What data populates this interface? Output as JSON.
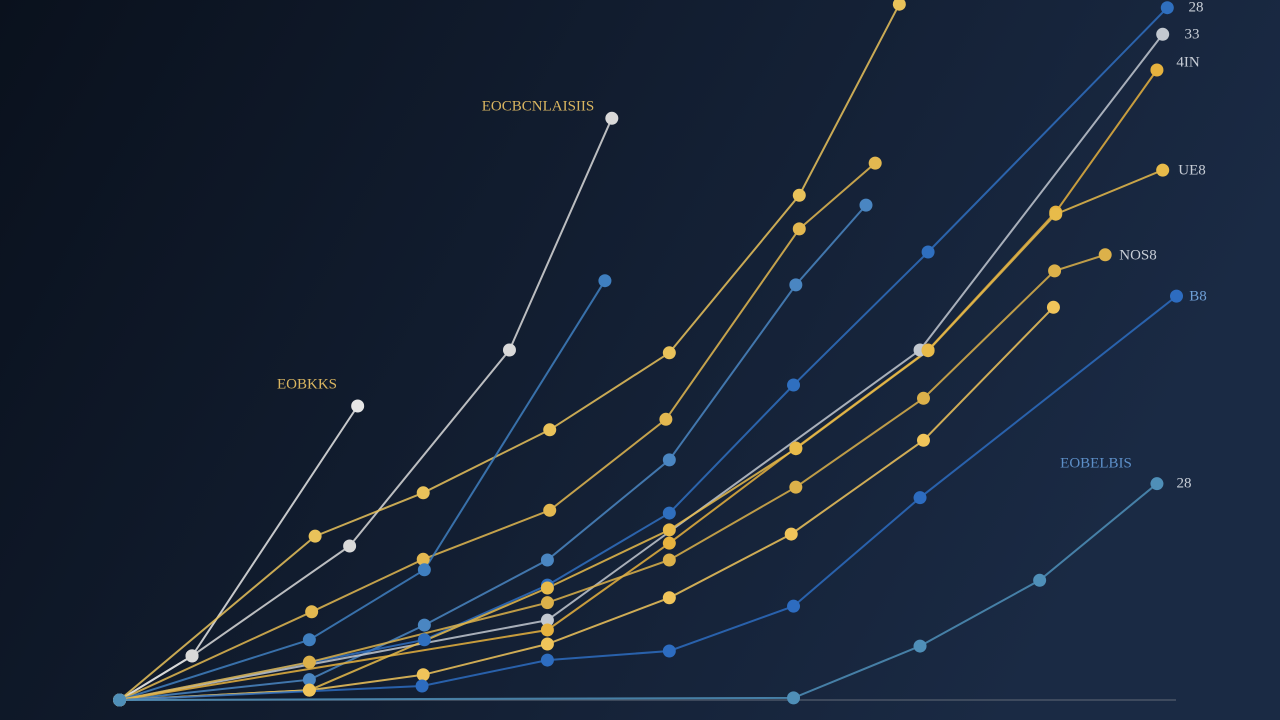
{
  "chart_data": {
    "type": "line",
    "xlim": [
      -1.04,
      10.09
    ],
    "ylim": [
      -2.86,
      100
    ],
    "series": [
      {
        "color": "#e6e6e6",
        "x": [
          0,
          0.63,
          2.07
        ],
        "values": [
          0,
          6.3,
          42
        ]
      },
      {
        "color": "#d9d9d9",
        "x": [
          0,
          0.63,
          2.0,
          3.39,
          4.28
        ],
        "values": [
          0,
          6.3,
          22,
          50,
          83.1
        ]
      },
      {
        "color": "#e9c25a",
        "x": [
          0,
          1.7,
          2.64,
          3.74,
          4.78,
          5.91,
          6.78
        ],
        "values": [
          0,
          23.4,
          29.6,
          38.6,
          49.6,
          72.1,
          99.4
        ]
      },
      {
        "color": "#e3b850",
        "x": [
          0,
          1.67,
          2.64,
          3.74,
          4.75,
          5.91,
          6.57
        ],
        "values": [
          0,
          12.6,
          20.1,
          27.1,
          40.1,
          67.3,
          76.7
        ]
      },
      {
        "color": "#3f7fc0",
        "x": [
          0,
          1.65,
          2.65,
          4.22
        ],
        "values": [
          0,
          8.6,
          18.6,
          59.9
        ]
      },
      {
        "color": "#4a86c2",
        "x": [
          0,
          1.65,
          2.65,
          3.72,
          4.78,
          5.88,
          6.49
        ],
        "values": [
          0,
          2.9,
          10.7,
          20,
          34.3,
          59.3,
          70.7
        ]
      },
      {
        "color": "#2f6fbf",
        "x": [
          0,
          2.65,
          3.72,
          4.78,
          5.86,
          7.03,
          9.11
        ],
        "values": [
          0,
          8.6,
          16.4,
          26.7,
          45,
          64,
          98.9
        ]
      },
      {
        "color": "#c2c8d0",
        "x": [
          0,
          3.72,
          6.96,
          9.07
        ],
        "values": [
          0,
          11.4,
          50,
          95.1
        ]
      },
      {
        "color": "#e6b23e",
        "x": [
          0,
          3.72,
          4.78,
          5.88,
          7.03,
          8.14,
          9.02
        ],
        "values": [
          0,
          10,
          22.4,
          36,
          50,
          69.7,
          90
        ]
      },
      {
        "color": "#e8bb4a",
        "x": [
          0,
          1.65,
          3.72,
          4.78,
          5.88,
          7.03,
          8.14,
          9.07
        ],
        "values": [
          0,
          1.4,
          16,
          24.3,
          35.9,
          49.9,
          69.4,
          75.7
        ]
      },
      {
        "color": "#dcb14a",
        "x": [
          0,
          1.65,
          3.72,
          4.78,
          5.88,
          6.99,
          8.13,
          8.57
        ],
        "values": [
          0,
          5.4,
          13.9,
          20,
          30.4,
          43.1,
          61.3,
          63.6
        ]
      },
      {
        "color": "#f0c45a",
        "x": [
          0,
          1.65,
          2.64,
          3.72,
          4.78,
          5.84,
          6.99,
          8.12
        ],
        "values": [
          0,
          1.4,
          3.6,
          8,
          14.6,
          23.7,
          37.1,
          56.1
        ]
      },
      {
        "color": "#2d6cc0",
        "x": [
          0,
          2.63,
          3.72,
          4.78,
          5.86,
          6.96,
          9.19
        ],
        "values": [
          0,
          2,
          5.7,
          7,
          13.4,
          28.9,
          57.7
        ]
      },
      {
        "color": "#4f8fb8",
        "x": [
          0,
          5.86,
          6.96,
          8.0,
          9.02
        ],
        "values": [
          0,
          0.3,
          7.7,
          17.1,
          30.9
        ]
      }
    ],
    "annotations": [
      "EOCBCNLAISIIS",
      "EOBKKS",
      "EOBELBIS",
      "28",
      "33",
      "4IN",
      "UE8",
      "NOS8",
      "B8",
      "28"
    ]
  }
}
